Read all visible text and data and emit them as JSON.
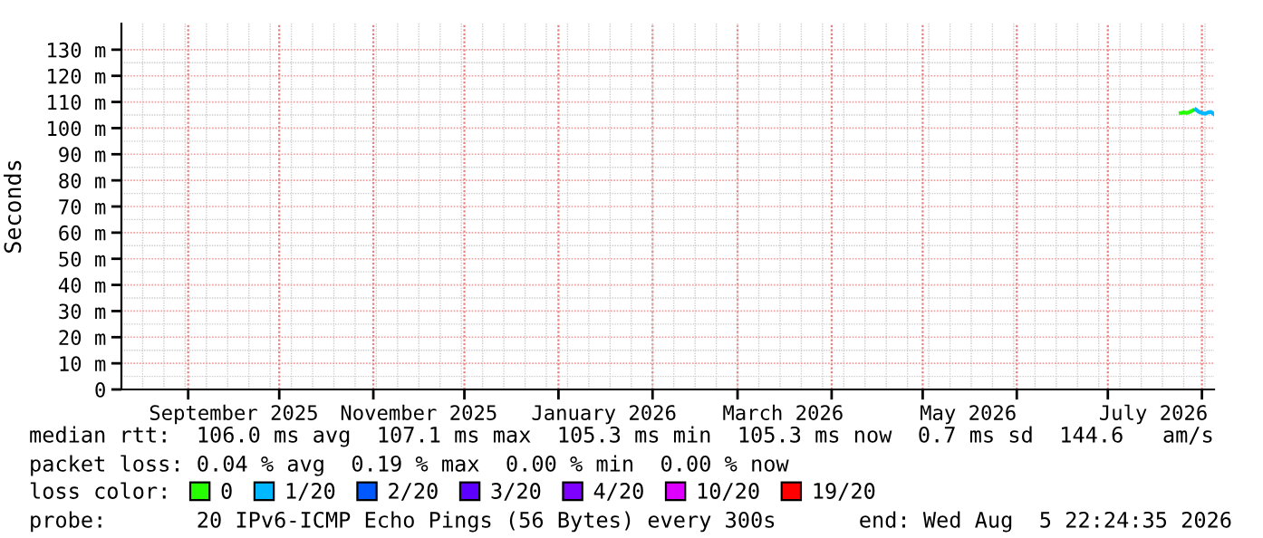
{
  "chart_data": {
    "type": "line",
    "ylabel": "Seconds",
    "x": [
      "2026-07-25",
      "2026-07-26",
      "2026-07-27",
      "2026-07-28",
      "2026-07-29",
      "2026-07-30",
      "2026-07-31",
      "2026-08-01",
      "2026-08-02",
      "2026-08-03",
      "2026-08-04",
      "2026-08-05"
    ],
    "series": [
      {
        "name": "0",
        "color": "#26ff00",
        "values": [
          105.8,
          106.0,
          105.8,
          106.2,
          106.8,
          null,
          null,
          null,
          null,
          null,
          null,
          null
        ]
      },
      {
        "name": "1/20",
        "color": "#00b8ff",
        "values": [
          null,
          null,
          null,
          null,
          null,
          107.1,
          106.2,
          105.8,
          105.5,
          106.0,
          106.2,
          105.3
        ]
      },
      {
        "name": "2/20",
        "color": "#0059ff",
        "values": [
          null,
          null,
          null,
          null,
          null,
          null,
          null,
          null,
          null,
          null,
          null,
          null
        ]
      },
      {
        "name": "3/20",
        "color": "#5e00ff",
        "values": [
          null,
          null,
          null,
          null,
          null,
          null,
          null,
          null,
          null,
          null,
          null,
          null
        ]
      },
      {
        "name": "4/20",
        "color": "#7e00ff",
        "values": [
          null,
          null,
          null,
          null,
          null,
          null,
          null,
          null,
          null,
          null,
          null,
          null
        ]
      },
      {
        "name": "10/20",
        "color": "#dd00ff",
        "values": [
          null,
          null,
          null,
          null,
          null,
          null,
          null,
          null,
          null,
          null,
          null,
          null
        ]
      },
      {
        "name": "19/20",
        "color": "#ff0000",
        "values": [
          null,
          null,
          null,
          null,
          null,
          null,
          null,
          null,
          null,
          null,
          null,
          null
        ]
      }
    ],
    "legend_title": "loss color:",
    "legend": "bottom",
    "grid": true,
    "xlim": [
      "2025-08-10",
      "2026-08-05"
    ],
    "xticks": [
      {
        "value": "2025-09-01",
        "label": null
      },
      {
        "value": "2025-09-16",
        "label": "September 2025"
      },
      {
        "value": "2025-10-01",
        "label": null
      },
      {
        "value": "2025-11-01",
        "label": null
      },
      {
        "value": "2025-11-16",
        "label": "November 2025"
      },
      {
        "value": "2025-12-01",
        "label": null
      },
      {
        "value": "2026-01-01",
        "label": null
      },
      {
        "value": "2026-01-16",
        "label": "January 2026"
      },
      {
        "value": "2026-02-01",
        "label": null
      },
      {
        "value": "2026-03-01",
        "label": null
      },
      {
        "value": "2026-03-16",
        "label": "March 2026"
      },
      {
        "value": "2026-04-01",
        "label": null
      },
      {
        "value": "2026-05-01",
        "label": null
      },
      {
        "value": "2026-05-16",
        "label": "May 2026"
      },
      {
        "value": "2026-06-01",
        "label": null
      },
      {
        "value": "2026-07-01",
        "label": null
      },
      {
        "value": "2026-07-16",
        "label": "July 2026"
      },
      {
        "value": "2026-08-01",
        "label": null
      }
    ],
    "ylim": [
      0,
      140
    ],
    "yticks": [
      {
        "value": 0,
        "label": "0"
      },
      {
        "value": 10,
        "label": "10 m"
      },
      {
        "value": 20,
        "label": "20 m"
      },
      {
        "value": 30,
        "label": "30 m"
      },
      {
        "value": 40,
        "label": "40 m"
      },
      {
        "value": 50,
        "label": "50 m"
      },
      {
        "value": 60,
        "label": "60 m"
      },
      {
        "value": 70,
        "label": "70 m"
      },
      {
        "value": 80,
        "label": "80 m"
      },
      {
        "value": 90,
        "label": "90 m"
      },
      {
        "value": 100,
        "label": "100 m"
      },
      {
        "value": 110,
        "label": "110 m"
      },
      {
        "value": 120,
        "label": "120 m"
      },
      {
        "value": 130,
        "label": "130 m"
      }
    ],
    "annotations": [
      "median rtt:  106.0 ms avg  107.1 ms max  105.3 ms min  105.3 ms now  0.7 ms sd  144.6   am/s",
      "packet loss: 0.04 % avg  0.19 % max  0.00 % min  0.00 % now",
      "probe:       20 IPv6-ICMP Echo Pings (56 Bytes) every 300s",
      "end: Wed Aug  5 22:24:35 2026"
    ]
  }
}
